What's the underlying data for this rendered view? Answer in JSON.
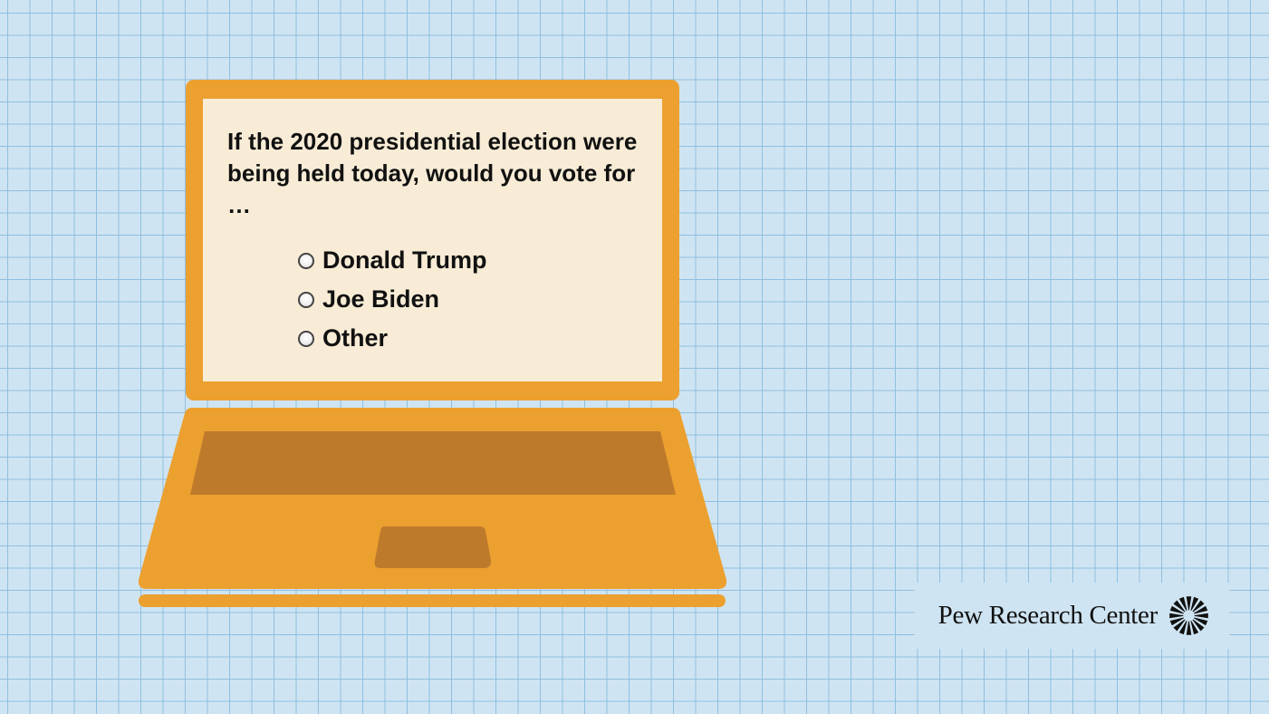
{
  "survey": {
    "question": "If the 2020 presidential election were being held today, would you vote for …",
    "options": [
      {
        "label": "Donald Trump",
        "selected": false
      },
      {
        "label": "Joe Biden",
        "selected": false
      },
      {
        "label": "Other",
        "selected": false
      }
    ]
  },
  "branding": {
    "org_name": "Pew Research Center",
    "logo_icon": "sunburst-logo-icon"
  },
  "colors": {
    "background": "#cfe4f2",
    "grid_lines": "#8fbfe0",
    "laptop_body": "#eca030",
    "laptop_dark": "#bd7a2a",
    "screen": "#f8ecd6",
    "text": "#111111"
  }
}
